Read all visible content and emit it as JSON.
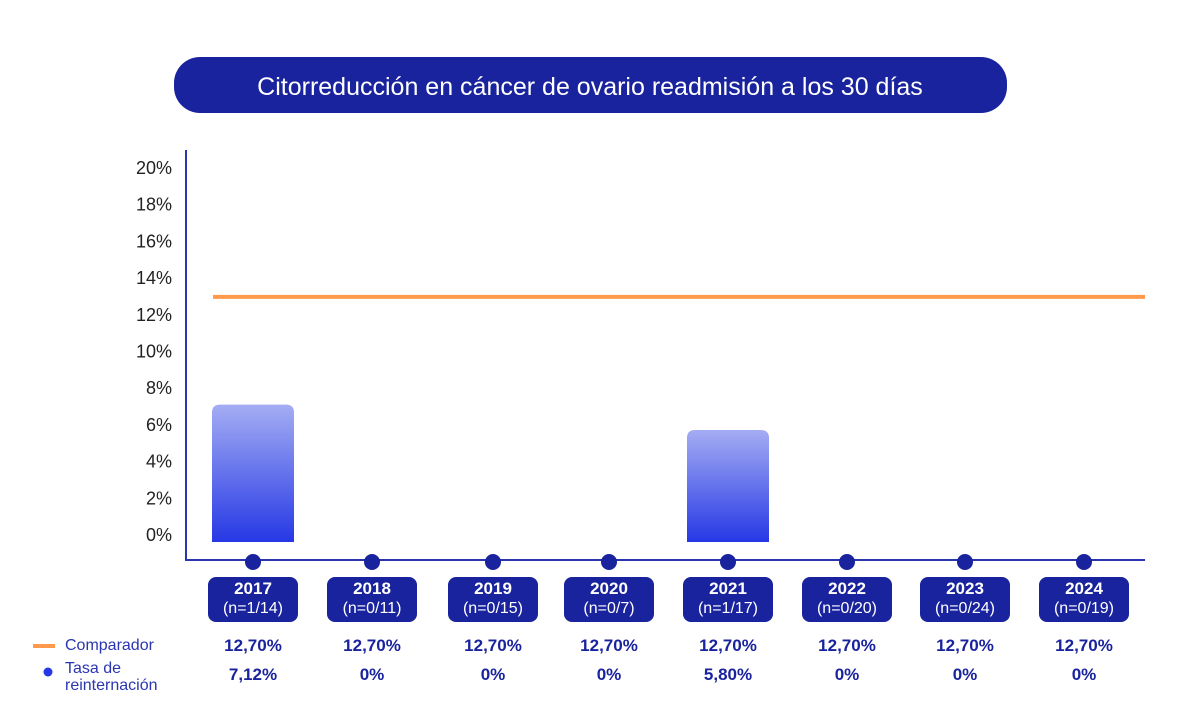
{
  "chart_data": {
    "type": "bar",
    "title": "Citorreducción en cáncer de ovario readmisión a los 30 días",
    "categories": [
      "2017",
      "2018",
      "2019",
      "2020",
      "2021",
      "2022",
      "2023",
      "2024"
    ],
    "n_labels": [
      "(n=1/14)",
      "(n=0/11)",
      "(n=0/15)",
      "(n=0/7)",
      "(n=1/17)",
      "(n=0/20)",
      "(n=0/24)",
      "(n=0/19)"
    ],
    "series": [
      {
        "name": "Tasa de reinternación",
        "type": "bar",
        "values": [
          7.12,
          0,
          0,
          0,
          5.8,
          0,
          0,
          0
        ],
        "labels": [
          "7,12%",
          "0%",
          "0%",
          "0%",
          "5,80%",
          "0%",
          "0%",
          "0%"
        ]
      },
      {
        "name": "Comparador",
        "type": "line",
        "values": [
          12.7,
          12.7,
          12.7,
          12.7,
          12.7,
          12.7,
          12.7,
          12.7
        ],
        "labels": [
          "12,70%",
          "12,70%",
          "12,70%",
          "12,70%",
          "12,70%",
          "12,70%",
          "12,70%",
          "12,70%"
        ]
      }
    ],
    "legend": {
      "comparador": "Comparador",
      "tasa_line1": "Tasa de",
      "tasa_line2": "reinternación"
    },
    "yticks": [
      "0%",
      "2%",
      "4%",
      "6%",
      "8%",
      "10%",
      "12%",
      "14%",
      "16%",
      "18%",
      "20%"
    ],
    "ylim": [
      0,
      20
    ],
    "colors": {
      "navy": "#1a239e",
      "orange": "#ff9a4d",
      "bar_top": "#a4adf3",
      "bar_bottom": "#2638e5"
    }
  }
}
